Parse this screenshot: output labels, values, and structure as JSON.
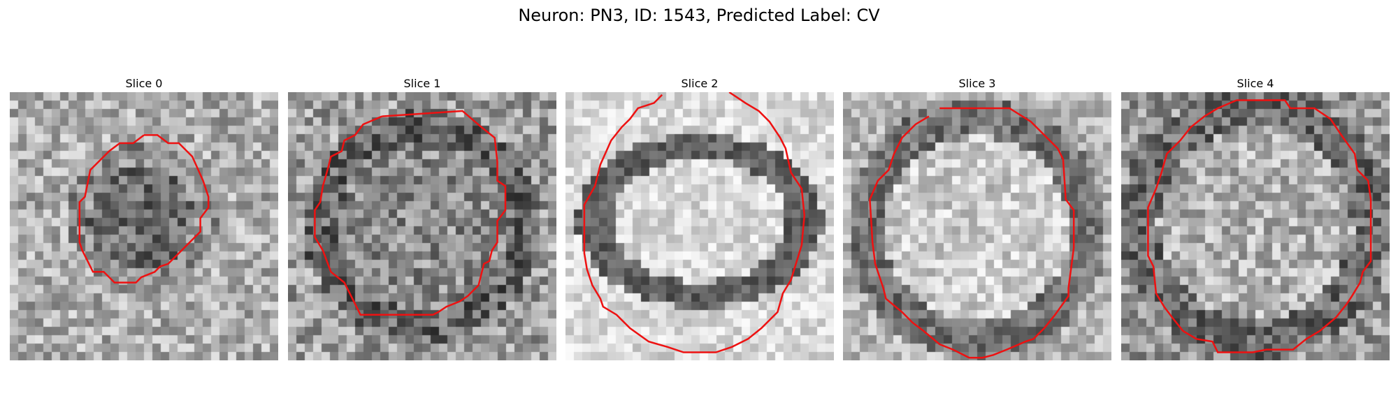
{
  "figure": {
    "title": "Neuron: PN3, ID: 1543, Predicted Label: CV"
  },
  "panels": [
    {
      "title": "Slice 0"
    },
    {
      "title": "Slice 1"
    },
    {
      "title": "Slice 2"
    },
    {
      "title": "Slice 3"
    },
    {
      "title": "Slice 4"
    }
  ],
  "colors": {
    "contour": "#ee1111",
    "background": "#ffffff"
  }
}
